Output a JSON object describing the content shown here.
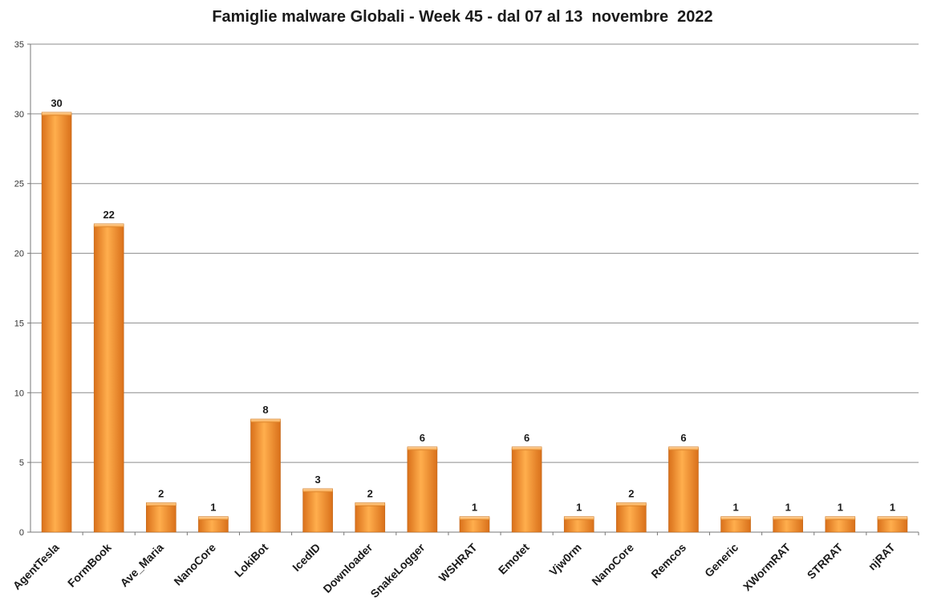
{
  "chart_data": {
    "type": "bar",
    "title": "Famiglie malware Globali - Week 45 - dal 07 al 13  novembre  2022",
    "xlabel": "",
    "ylabel": "",
    "ylim": [
      0,
      35
    ],
    "yticks": [
      0,
      5,
      10,
      15,
      20,
      25,
      30,
      35
    ],
    "grid": true,
    "legend": "none",
    "categories": [
      "AgentTesla",
      "FormBook",
      "Ave_Maria",
      "NanoCore",
      "LokiBot",
      "IcedID",
      "Downloader",
      "SnakeLogger",
      "WSHRAT",
      "Emotet",
      "Vjw0rm",
      "NanoCore",
      "Remcos",
      "Generic",
      "XWormRAT",
      "STRRAT",
      "njRAT"
    ],
    "values": [
      30,
      22,
      2,
      1,
      8,
      3,
      2,
      6,
      1,
      6,
      1,
      2,
      6,
      1,
      1,
      1,
      1
    ],
    "colors": {
      "bar_light": "#ffae4d",
      "bar_mid": "#f7922e",
      "bar_dark": "#d9701a",
      "grid": "#8c8c8c"
    }
  }
}
